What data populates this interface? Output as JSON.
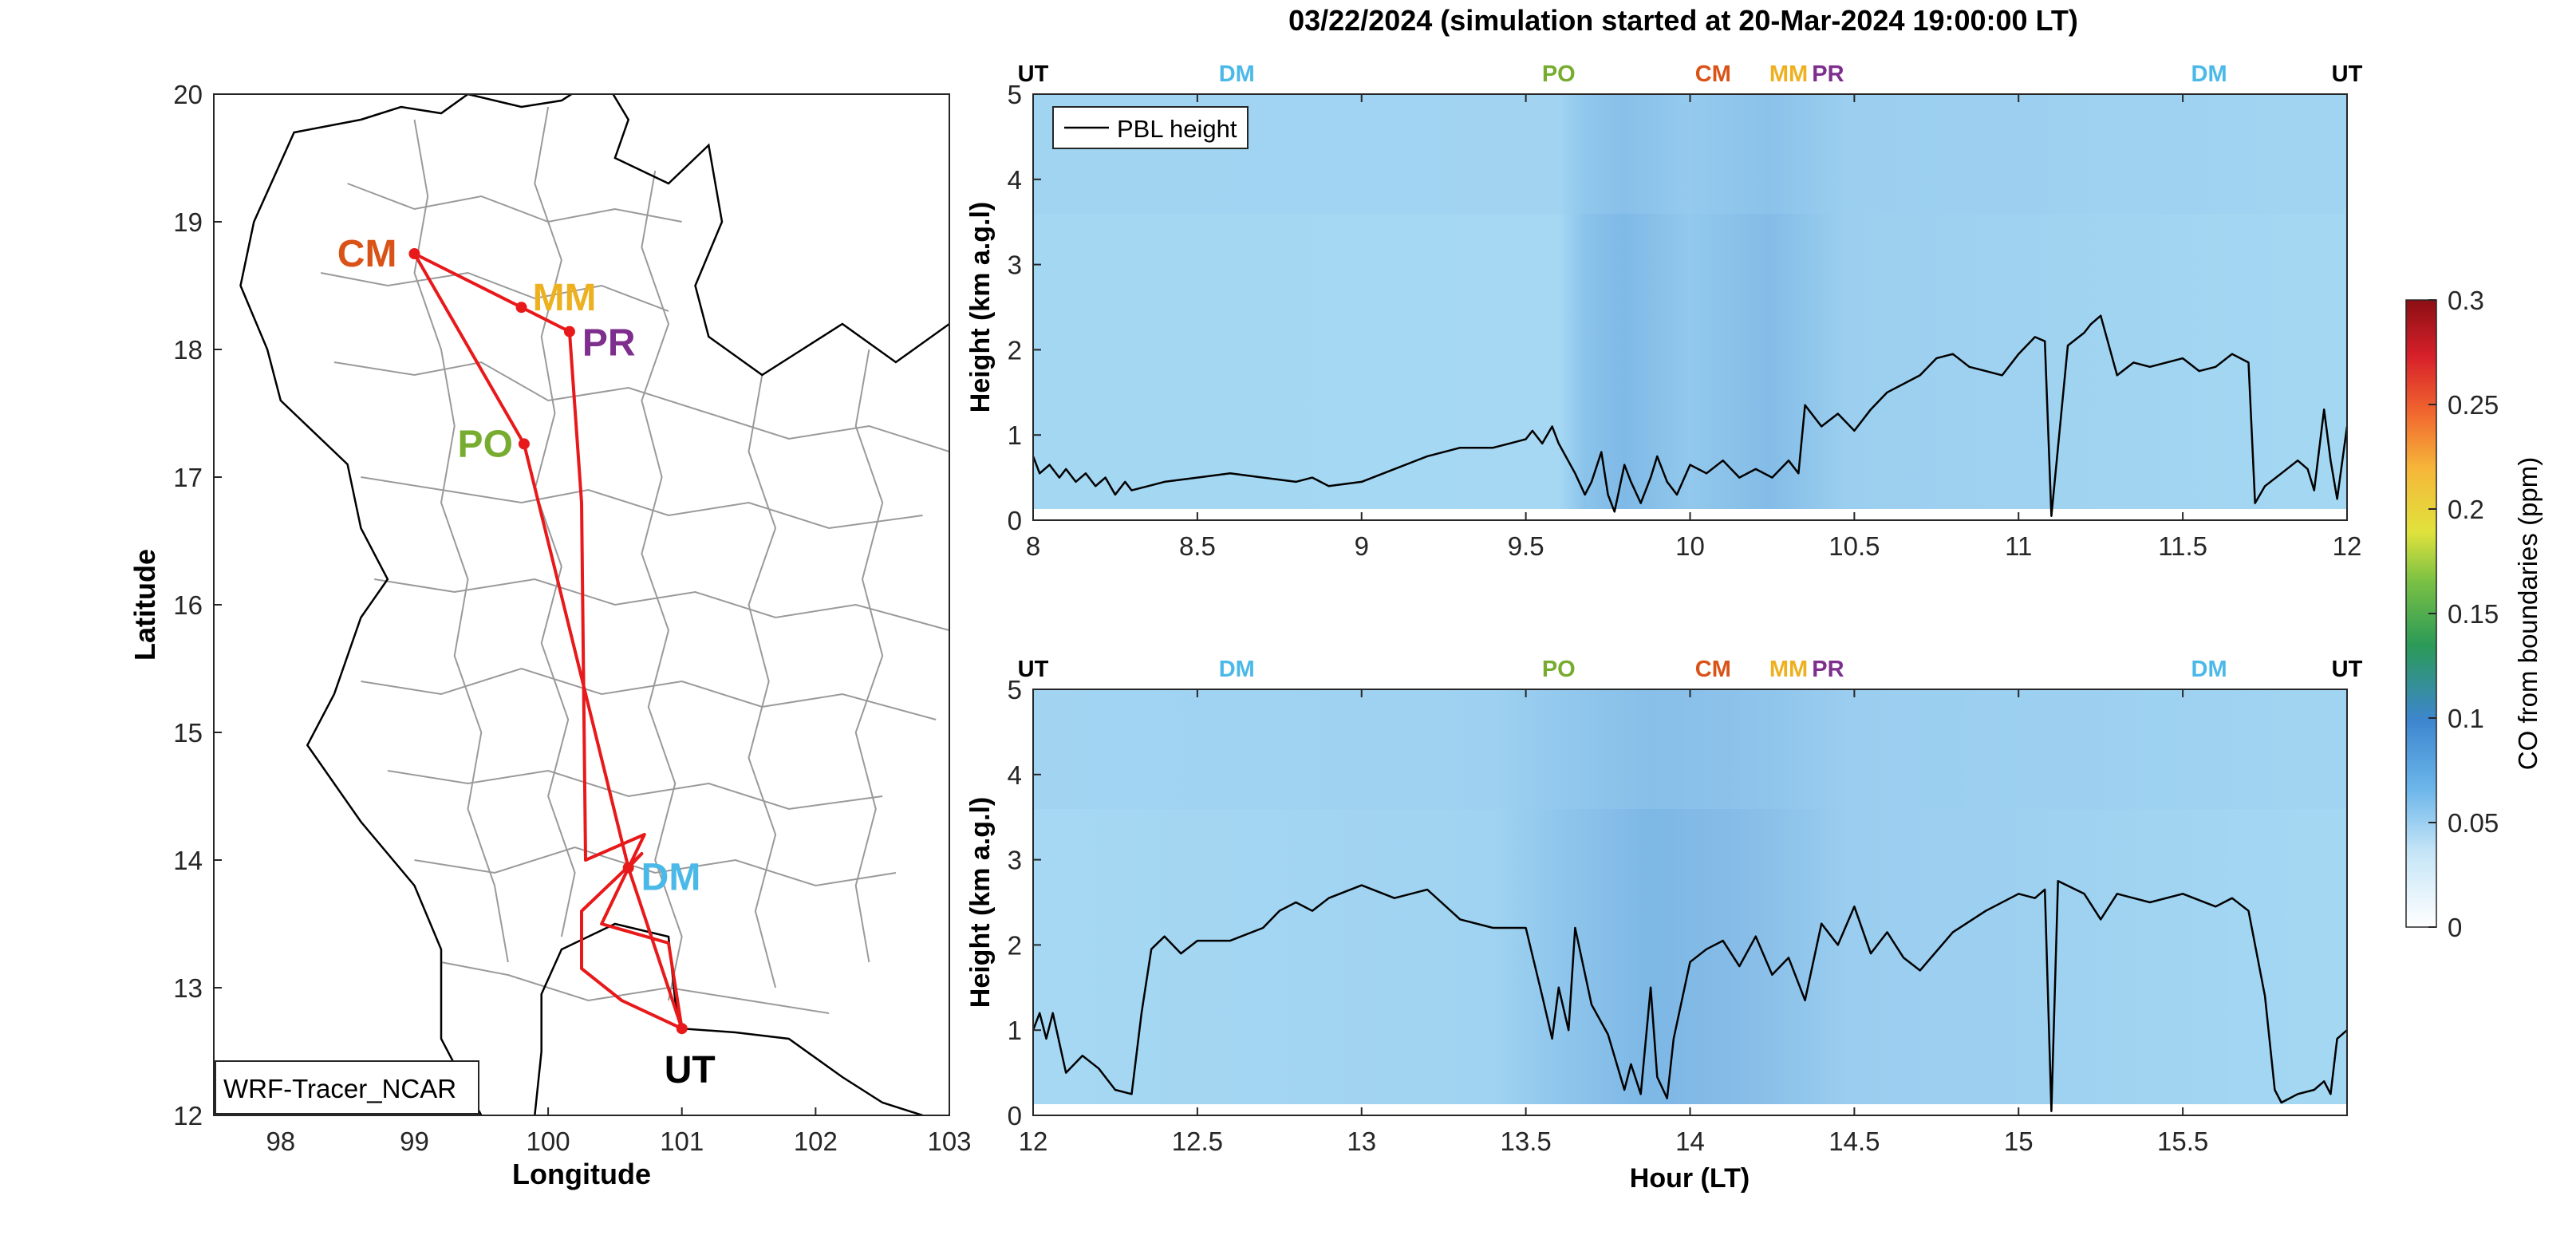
{
  "title": "03/22/2024 (simulation started at 20-Mar-2024 19:00:00 LT)",
  "colors": {
    "route": "#e8191a",
    "UT": "#000000",
    "DM": "#4bb9e8",
    "PO": "#77ac30",
    "CM": "#d95319",
    "MM": "#edb120",
    "PR": "#7e2f8e",
    "pbl": "#000000",
    "border": "#9a9a9a",
    "coast": "#000000"
  },
  "chart_data": [
    {
      "type": "map",
      "xlabel": "Longitude",
      "ylabel": "Latitude",
      "xlim": [
        97.5,
        103
      ],
      "ylim": [
        12,
        20
      ],
      "xticks": [
        "98",
        "99",
        "100",
        "101",
        "102",
        "103"
      ],
      "yticks": [
        "12",
        "13",
        "14",
        "15",
        "16",
        "17",
        "18",
        "19",
        "20"
      ],
      "annotation": "WRF-Tracer_NCAR",
      "sites": [
        {
          "code": "CM",
          "lon": 99.0,
          "lat": 18.75
        },
        {
          "code": "MM",
          "lon": 99.8,
          "lat": 18.33
        },
        {
          "code": "PR",
          "lon": 100.16,
          "lat": 18.14
        },
        {
          "code": "PO",
          "lon": 99.82,
          "lat": 17.26
        },
        {
          "code": "DM",
          "lon": 100.6,
          "lat": 13.94
        },
        {
          "code": "UT",
          "lon": 101.0,
          "lat": 12.68
        }
      ],
      "route": [
        [
          101.0,
          12.68
        ],
        [
          100.6,
          13.94
        ],
        [
          99.82,
          17.26
        ],
        [
          99.0,
          18.75
        ],
        [
          99.8,
          18.33
        ],
        [
          100.16,
          18.14
        ],
        [
          100.25,
          16.8
        ],
        [
          100.28,
          14.0
        ],
        [
          100.72,
          14.2
        ],
        [
          100.4,
          13.5
        ],
        [
          100.9,
          13.35
        ],
        [
          101.0,
          12.68
        ],
        [
          100.55,
          12.9
        ],
        [
          100.25,
          13.15
        ],
        [
          100.25,
          13.6
        ],
        [
          100.7,
          14.05
        ],
        [
          100.6,
          13.94
        ]
      ]
    },
    {
      "type": "heatmap",
      "xlabel": "",
      "ylabel": "Height (km a.g.l)",
      "xlim": [
        8,
        12
      ],
      "ylim": [
        0,
        5
      ],
      "xticks": [
        "8",
        "8.5",
        "9",
        "9.5",
        "10",
        "10.5",
        "11",
        "11.5",
        "12"
      ],
      "yticks": [
        "0",
        "1",
        "2",
        "3",
        "4",
        "5"
      ],
      "legend": "PBL height",
      "site_markers": [
        {
          "code": "UT",
          "hour": 8.0
        },
        {
          "code": "DM",
          "hour": 8.62
        },
        {
          "code": "PO",
          "hour": 9.6
        },
        {
          "code": "CM",
          "hour": 10.07
        },
        {
          "code": "MM",
          "hour": 10.3
        },
        {
          "code": "PR",
          "hour": 10.42
        },
        {
          "code": "DM",
          "hour": 11.58
        },
        {
          "code": "UT",
          "hour": 12.0
        }
      ],
      "pbl_height": {
        "hour": [
          8.0,
          8.02,
          8.05,
          8.08,
          8.1,
          8.13,
          8.16,
          8.19,
          8.22,
          8.25,
          8.28,
          8.3,
          8.35,
          8.4,
          8.5,
          8.6,
          8.7,
          8.8,
          8.85,
          8.9,
          9.0,
          9.1,
          9.2,
          9.3,
          9.4,
          9.45,
          9.5,
          9.52,
          9.55,
          9.58,
          9.6,
          9.65,
          9.68,
          9.7,
          9.73,
          9.75,
          9.77,
          9.8,
          9.82,
          9.85,
          9.88,
          9.9,
          9.93,
          9.96,
          10.0,
          10.05,
          10.1,
          10.15,
          10.2,
          10.25,
          10.3,
          10.33,
          10.35,
          10.4,
          10.45,
          10.5,
          10.55,
          10.6,
          10.7,
          10.75,
          10.8,
          10.85,
          10.9,
          10.95,
          11.0,
          11.05,
          11.08,
          11.1,
          11.15,
          11.2,
          11.22,
          11.25,
          11.3,
          11.35,
          11.4,
          11.5,
          11.55,
          11.6,
          11.65,
          11.7,
          11.72,
          11.75,
          11.8,
          11.85,
          11.88,
          11.9,
          11.93,
          11.95,
          11.97,
          12.0
        ],
        "height": [
          0.75,
          0.55,
          0.65,
          0.5,
          0.6,
          0.45,
          0.55,
          0.4,
          0.5,
          0.3,
          0.45,
          0.35,
          0.4,
          0.45,
          0.5,
          0.55,
          0.5,
          0.45,
          0.5,
          0.4,
          0.45,
          0.6,
          0.75,
          0.85,
          0.85,
          0.9,
          0.95,
          1.05,
          0.9,
          1.1,
          0.9,
          0.55,
          0.3,
          0.45,
          0.8,
          0.3,
          0.1,
          0.65,
          0.45,
          0.2,
          0.5,
          0.75,
          0.45,
          0.3,
          0.65,
          0.55,
          0.7,
          0.5,
          0.6,
          0.5,
          0.7,
          0.55,
          1.35,
          1.1,
          1.25,
          1.05,
          1.3,
          1.5,
          1.7,
          1.9,
          1.95,
          1.8,
          1.75,
          1.7,
          1.95,
          2.15,
          2.1,
          0.05,
          2.05,
          2.2,
          2.3,
          2.4,
          1.7,
          1.85,
          1.8,
          1.9,
          1.75,
          1.8,
          1.95,
          1.85,
          0.2,
          0.4,
          0.55,
          0.7,
          0.6,
          0.35,
          1.3,
          0.7,
          0.25,
          1.1
        ]
      }
    },
    {
      "type": "heatmap",
      "xlabel": "Hour (LT)",
      "ylabel": "Height (km a.g.l)",
      "xlim": [
        12,
        16
      ],
      "ylim": [
        0,
        5
      ],
      "xticks": [
        "12",
        "12.5",
        "13",
        "13.5",
        "14",
        "14.5",
        "15",
        "15.5"
      ],
      "yticks": [
        "0",
        "1",
        "2",
        "3",
        "4",
        "5"
      ],
      "site_markers": [
        {
          "code": "UT",
          "hour": 12.0
        },
        {
          "code": "DM",
          "hour": 12.62
        },
        {
          "code": "PO",
          "hour": 13.6
        },
        {
          "code": "CM",
          "hour": 14.07
        },
        {
          "code": "MM",
          "hour": 14.3
        },
        {
          "code": "PR",
          "hour": 14.42
        },
        {
          "code": "DM",
          "hour": 15.58
        },
        {
          "code": "UT",
          "hour": 16.0
        }
      ],
      "pbl_height": {
        "hour": [
          12.0,
          12.02,
          12.04,
          12.06,
          12.1,
          12.15,
          12.2,
          12.25,
          12.3,
          12.33,
          12.36,
          12.4,
          12.45,
          12.5,
          12.6,
          12.7,
          12.75,
          12.8,
          12.85,
          12.9,
          13.0,
          13.1,
          13.2,
          13.3,
          13.4,
          13.5,
          13.55,
          13.58,
          13.6,
          13.63,
          13.65,
          13.7,
          13.75,
          13.8,
          13.82,
          13.85,
          13.88,
          13.9,
          13.93,
          13.95,
          14.0,
          14.05,
          14.1,
          14.15,
          14.2,
          14.25,
          14.3,
          14.35,
          14.4,
          14.45,
          14.5,
          14.55,
          14.6,
          14.65,
          14.7,
          14.8,
          14.9,
          15.0,
          15.05,
          15.08,
          15.1,
          15.12,
          15.2,
          15.25,
          15.3,
          15.4,
          15.5,
          15.6,
          15.65,
          15.7,
          15.75,
          15.78,
          15.8,
          15.85,
          15.9,
          15.93,
          15.95,
          15.97,
          16.0
        ],
        "height": [
          1.0,
          1.2,
          0.9,
          1.2,
          0.5,
          0.7,
          0.55,
          0.3,
          0.25,
          1.2,
          1.95,
          2.1,
          1.9,
          2.05,
          2.05,
          2.2,
          2.4,
          2.5,
          2.4,
          2.55,
          2.7,
          2.55,
          2.65,
          2.3,
          2.2,
          2.2,
          1.4,
          0.9,
          1.5,
          1.0,
          2.2,
          1.3,
          0.95,
          0.3,
          0.6,
          0.25,
          1.5,
          0.45,
          0.2,
          0.9,
          1.8,
          1.95,
          2.05,
          1.75,
          2.1,
          1.65,
          1.85,
          1.35,
          2.25,
          2.0,
          2.45,
          1.9,
          2.15,
          1.85,
          1.7,
          2.15,
          2.4,
          2.6,
          2.55,
          2.65,
          0.05,
          2.75,
          2.6,
          2.3,
          2.6,
          2.5,
          2.6,
          2.45,
          2.55,
          2.4,
          1.4,
          0.3,
          0.15,
          0.25,
          0.3,
          0.4,
          0.25,
          0.9,
          1.0
        ]
      }
    },
    {
      "type": "colorbar",
      "label": "CO from boundaries (ppm)",
      "clim": [
        0,
        0.3
      ],
      "ticks": [
        "0",
        "0.05",
        "0.1",
        "0.15",
        "0.2",
        "0.25",
        "0.3"
      ]
    }
  ]
}
